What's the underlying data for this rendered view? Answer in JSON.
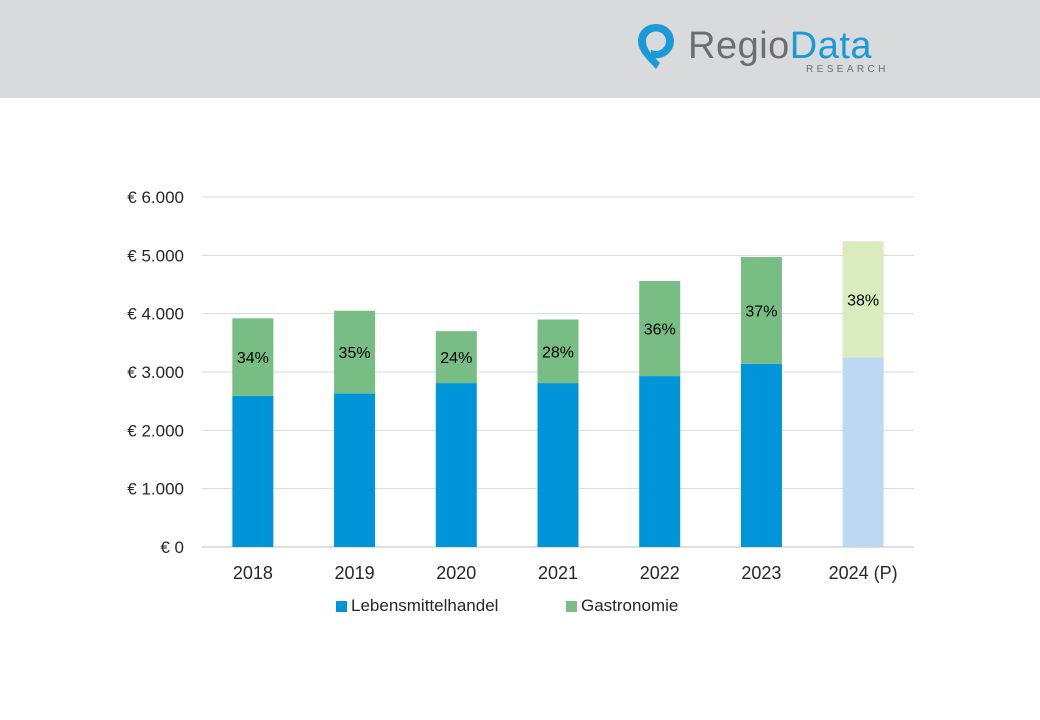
{
  "brand": {
    "name_part1": "Regio",
    "name_part2": "Data",
    "tagline": "RESEARCH",
    "icon": "map-pin-icon",
    "color_gray": "#6d6e71",
    "color_blue": "#1a9ad6"
  },
  "chart_data": {
    "type": "bar",
    "stacked": true,
    "categories": [
      "2018",
      "2019",
      "2020",
      "2021",
      "2022",
      "2023",
      "2024 (P)"
    ],
    "series": [
      {
        "name": "Lebensmittelhandel",
        "color": "#0095d9",
        "projected_color": "#bdd9f1",
        "values": [
          2590,
          2630,
          2810,
          2810,
          2930,
          3140,
          3250
        ]
      },
      {
        "name": "Gastronomie",
        "color": "#77bd84",
        "projected_color": "#d9ecbe",
        "values": [
          1330,
          1420,
          890,
          1090,
          1630,
          1830,
          1990
        ]
      }
    ],
    "data_labels": [
      "34%",
      "35%",
      "24%",
      "28%",
      "36%",
      "37%",
      "38%"
    ],
    "projected_categories": [
      "2024 (P)"
    ],
    "yticks": [
      "€ 0",
      "€ 1.000",
      "€ 2.000",
      "€ 3.000",
      "€ 4.000",
      "€ 5.000",
      "€ 6.000"
    ],
    "ylim": [
      0,
      6000
    ],
    "grid": true,
    "legend_position": "bottom",
    "title": "",
    "xlabel": "",
    "ylabel": ""
  }
}
